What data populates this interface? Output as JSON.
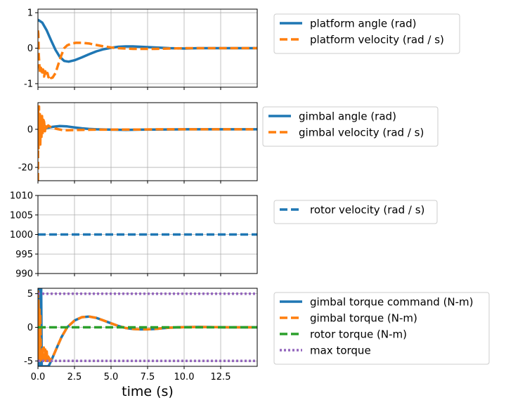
{
  "colors": {
    "blue": "#1f77b4",
    "orange": "#ff7f0e",
    "green": "#2ca02c",
    "purple": "#9467bd",
    "grid": "#b0b0b0"
  },
  "chart_data": [
    {
      "type": "line",
      "xlim": [
        0,
        15
      ],
      "ylim": [
        -1.1,
        1.1
      ],
      "yticks": [
        -1,
        0,
        1
      ],
      "grid": true,
      "legend_position": "right",
      "series": [
        {
          "name": "platform angle (rad)",
          "color": "#1f77b4",
          "style": "solid",
          "x": [
            0,
            0.3,
            0.6,
            0.9,
            1.2,
            1.5,
            1.8,
            2.1,
            2.5,
            3.0,
            3.5,
            4.0,
            4.5,
            5.0,
            5.5,
            6.0,
            6.5,
            7.0,
            7.5,
            8.0,
            8.5,
            9.0,
            10.0,
            11.0,
            12.0,
            13.0,
            15.0
          ],
          "y": [
            0.8,
            0.72,
            0.5,
            0.22,
            -0.05,
            -0.25,
            -0.36,
            -0.38,
            -0.34,
            -0.26,
            -0.17,
            -0.09,
            -0.03,
            0.01,
            0.04,
            0.05,
            0.05,
            0.04,
            0.03,
            0.02,
            0.01,
            0.0,
            -0.01,
            0.0,
            0.0,
            0.0,
            0.0
          ]
        },
        {
          "name": "platform velocity (rad / s)",
          "color": "#ff7f0e",
          "style": "dashed",
          "x": [
            0,
            0.03,
            0.06,
            0.1,
            0.15,
            0.2,
            0.28,
            0.35,
            0.42,
            0.5,
            0.58,
            0.65,
            0.72,
            0.8,
            0.9,
            1.0,
            1.2,
            1.4,
            1.6,
            1.8,
            2.0,
            2.3,
            2.6,
            3.0,
            3.5,
            4.0,
            4.5,
            5.0,
            5.5,
            6.0,
            6.5,
            7.0,
            8.0,
            9.0,
            10.0,
            12.0,
            15.0
          ],
          "y": [
            0.5,
            0.4,
            -0.2,
            -0.5,
            -0.7,
            -0.55,
            -0.75,
            -0.6,
            -0.8,
            -0.65,
            -0.78,
            -0.7,
            -0.82,
            -0.76,
            -0.84,
            -0.83,
            -0.7,
            -0.45,
            -0.2,
            0.0,
            0.08,
            0.13,
            0.15,
            0.15,
            0.13,
            0.09,
            0.05,
            0.02,
            0.0,
            -0.01,
            -0.02,
            -0.02,
            -0.02,
            -0.01,
            0.0,
            0.0,
            0.0
          ]
        }
      ]
    },
    {
      "type": "line",
      "xlim": [
        0,
        15
      ],
      "ylim": [
        -27,
        14
      ],
      "yticks": [
        -20,
        0
      ],
      "grid": true,
      "legend_position": "right",
      "series": [
        {
          "name": "gimbal angle (rad)",
          "color": "#1f77b4",
          "style": "solid",
          "x": [
            0,
            0.5,
            1.0,
            1.5,
            2.0,
            2.5,
            3.0,
            3.5,
            4.0,
            5.0,
            6.0,
            7.0,
            8.0,
            10.0,
            12.0,
            15.0
          ],
          "y": [
            0,
            0.6,
            1.3,
            1.7,
            1.5,
            1.0,
            0.5,
            0.2,
            0.0,
            -0.2,
            -0.3,
            -0.2,
            -0.1,
            0.0,
            0.0,
            0.0
          ]
        },
        {
          "name": "gimbal velocity (rad / s)",
          "color": "#ff7f0e",
          "style": "dashed",
          "x": [
            0,
            0.02,
            0.04,
            0.07,
            0.1,
            0.13,
            0.16,
            0.2,
            0.24,
            0.28,
            0.32,
            0.37,
            0.42,
            0.48,
            0.55,
            0.62,
            0.7,
            0.8,
            0.95,
            1.1,
            1.3,
            1.6,
            2.0,
            2.5,
            3.0,
            4.0,
            5.0,
            6.0,
            7.0,
            8.0,
            10.0,
            12.0,
            15.0
          ],
          "y": [
            -27,
            10,
            -10,
            12,
            -5,
            8,
            -8,
            6,
            -4,
            7,
            -3,
            5,
            4,
            -1,
            3,
            1,
            2,
            1.5,
            1.0,
            0.6,
            0.2,
            -0.3,
            -0.5,
            -0.4,
            -0.3,
            -0.2,
            -0.2,
            -0.1,
            -0.1,
            0.0,
            0.0,
            0.0,
            0.0
          ]
        }
      ]
    },
    {
      "type": "line",
      "xlim": [
        0,
        15
      ],
      "ylim": [
        990,
        1010
      ],
      "yticks": [
        990,
        995,
        1000,
        1005,
        1010
      ],
      "grid": true,
      "legend_position": "right",
      "series": [
        {
          "name": "rotor velocity (rad / s)",
          "color": "#1f77b4",
          "style": "dashed",
          "x": [
            0,
            15
          ],
          "y": [
            1000,
            1000
          ]
        }
      ]
    },
    {
      "type": "line",
      "xlim": [
        0,
        15
      ],
      "ylim": [
        -5.8,
        5.8
      ],
      "yticks": [
        -5,
        0,
        5
      ],
      "xticks": [
        0.0,
        2.5,
        5.0,
        7.5,
        10.0,
        12.5
      ],
      "xlabel": "time (s)",
      "grid": true,
      "legend_position": "right",
      "series": [
        {
          "name": "gimbal torque command (N-m)",
          "color": "#1f77b4",
          "style": "solid",
          "x": [
            0,
            0.03,
            0.06,
            0.1,
            0.14,
            0.18,
            0.22,
            0.26,
            0.3,
            0.35,
            0.4,
            0.45,
            0.5,
            0.55,
            0.6,
            0.65,
            0.7,
            0.8,
            1.0,
            1.3,
            1.6,
            2.0,
            2.5,
            3.0,
            3.5,
            4.0,
            4.5,
            5.0,
            5.5,
            6.0,
            6.5,
            7.0,
            7.5,
            8.0,
            8.5,
            9.0,
            10.0,
            11.0,
            12.0,
            13.0,
            15.0
          ],
          "y": [
            5.8,
            -5.8,
            5.8,
            -5.8,
            5.8,
            -5.8,
            5.8,
            -5.8,
            -5.8,
            -5.8,
            -5.8,
            -5.8,
            -5.8,
            -5.8,
            -5.8,
            -5.8,
            -5.8,
            -5.5,
            -4.5,
            -3.0,
            -1.5,
            0.0,
            1.0,
            1.5,
            1.6,
            1.4,
            1.0,
            0.6,
            0.2,
            -0.1,
            -0.25,
            -0.3,
            -0.3,
            -0.25,
            -0.15,
            -0.05,
            0.02,
            0.05,
            0.03,
            0.0,
            0.0
          ]
        },
        {
          "name": "gimbal torque (N-m)",
          "color": "#ff7f0e",
          "style": "dashed",
          "x": [
            0,
            0.02,
            0.04,
            0.07,
            0.1,
            0.13,
            0.16,
            0.2,
            0.24,
            0.28,
            0.32,
            0.36,
            0.4,
            0.45,
            0.5,
            0.55,
            0.6,
            0.65,
            0.7,
            0.8,
            1.0,
            1.3,
            1.6,
            2.0,
            2.5,
            3.0,
            3.5,
            4.0,
            4.5,
            5.0,
            5.5,
            6.0,
            6.5,
            7.0,
            7.5,
            8.0,
            8.5,
            9.0,
            10.0,
            11.0,
            12.0,
            13.0,
            15.0
          ],
          "y": [
            5.5,
            -5,
            4,
            -5,
            3,
            -5,
            2,
            -5,
            -3.5,
            -4.8,
            -3.2,
            -4.6,
            -3.0,
            -4.9,
            -3.3,
            -5.0,
            -3.6,
            -5.0,
            -4.0,
            -5.0,
            -4.5,
            -3.0,
            -1.5,
            0.0,
            1.0,
            1.5,
            1.6,
            1.4,
            1.0,
            0.6,
            0.2,
            -0.1,
            -0.25,
            -0.3,
            -0.3,
            -0.25,
            -0.15,
            -0.05,
            0.02,
            0.05,
            0.03,
            0.0,
            0.0
          ]
        },
        {
          "name": "rotor torque (N-m)",
          "color": "#2ca02c",
          "style": "dashed",
          "x": [
            0,
            15
          ],
          "y": [
            0,
            0
          ]
        },
        {
          "name": "max torque",
          "color": "#9467bd",
          "style": "dotted",
          "x": [
            0,
            15
          ],
          "y": [
            5,
            5
          ],
          "x2": [
            0,
            15
          ],
          "y2": [
            -5,
            -5
          ]
        }
      ]
    }
  ]
}
